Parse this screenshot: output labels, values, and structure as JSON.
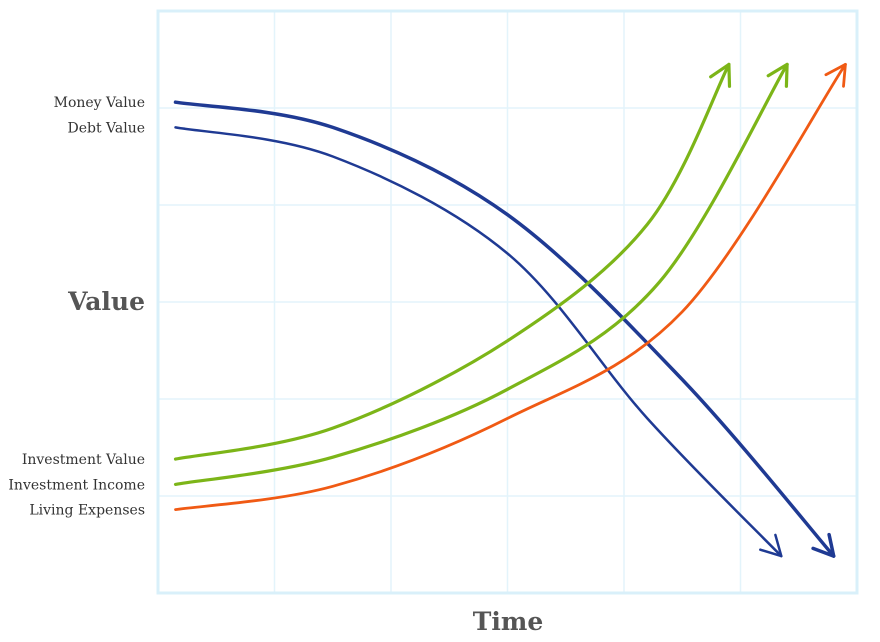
{
  "chart_data": {
    "type": "line",
    "title": "",
    "xlabel": "Time",
    "ylabel": "Value",
    "grid": true,
    "xlim": [
      0,
      6
    ],
    "ylim": [
      0,
      6
    ],
    "series": [
      {
        "name": "Money Value",
        "color": "#1f3a93",
        "direction": "falling",
        "points": [
          [
            0.15,
            5.06
          ],
          [
            1.5,
            4.8
          ],
          [
            3.0,
            3.9
          ],
          [
            4.5,
            2.2
          ],
          [
            5.8,
            0.38
          ]
        ]
      },
      {
        "name": "Debt Value",
        "color": "#1f3a93",
        "direction": "falling",
        "points": [
          [
            0.15,
            4.8
          ],
          [
            1.5,
            4.5
          ],
          [
            3.0,
            3.5
          ],
          [
            4.2,
            1.8
          ],
          [
            5.35,
            0.38
          ]
        ]
      },
      {
        "name": "Investment Value",
        "color": "#7cb518",
        "direction": "rising",
        "points": [
          [
            0.15,
            1.38
          ],
          [
            1.5,
            1.7
          ],
          [
            3.0,
            2.6
          ],
          [
            4.2,
            3.8
          ],
          [
            4.9,
            5.45
          ]
        ]
      },
      {
        "name": "Investment Income",
        "color": "#7cb518",
        "direction": "rising",
        "points": [
          [
            0.15,
            1.12
          ],
          [
            1.5,
            1.4
          ],
          [
            3.0,
            2.1
          ],
          [
            4.3,
            3.2
          ],
          [
            5.4,
            5.45
          ]
        ]
      },
      {
        "name": "Living Expenses",
        "color": "#f05a14",
        "direction": "rising",
        "points": [
          [
            0.15,
            0.86
          ],
          [
            1.5,
            1.1
          ],
          [
            3.0,
            1.8
          ],
          [
            4.5,
            2.9
          ],
          [
            5.9,
            5.45
          ]
        ]
      }
    ]
  }
}
